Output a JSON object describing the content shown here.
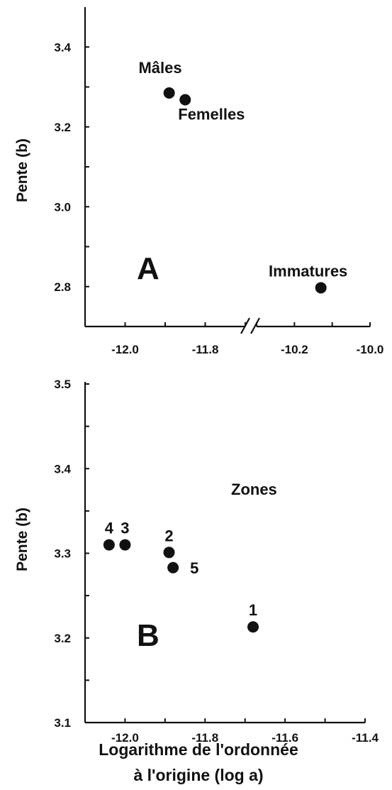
{
  "colors": {
    "ink": "#111111",
    "background": "#ffffff"
  },
  "x_axis_title_line1": "Logarithme de  l'ordonnée",
  "x_axis_title_line2": "à l'origine  (log a)",
  "chart_data": [
    {
      "type": "scatter",
      "panel": "A",
      "ylabel": "Pente  (b)",
      "ylim": [
        2.7,
        3.5
      ],
      "yticks": [
        2.8,
        3.0,
        3.2,
        3.4
      ],
      "broken_x_axis": true,
      "x_segments": [
        {
          "xlim": [
            -12.1,
            -11.7
          ],
          "ticks": [
            -12.0,
            -11.8
          ]
        },
        {
          "xlim": [
            -10.3,
            -10.0
          ],
          "ticks": [
            -10.2,
            -10.0
          ]
        }
      ],
      "points": [
        {
          "label": "Mâles",
          "x": -11.89,
          "y": 3.285
        },
        {
          "label": "Femelles",
          "x": -11.85,
          "y": 3.268
        },
        {
          "label": "Immatures",
          "x": -10.13,
          "y": 2.797
        }
      ]
    },
    {
      "type": "scatter",
      "panel": "B",
      "ylabel": "Pente   (b)",
      "ylim": [
        3.1,
        3.5
      ],
      "yticks": [
        3.1,
        3.2,
        3.3,
        3.4,
        3.5
      ],
      "xlim": [
        -12.1,
        -11.4
      ],
      "xticks": [
        -12.0,
        -11.8,
        -11.6,
        -11.4
      ],
      "annotation": "Zones",
      "points": [
        {
          "label": "4",
          "x": -12.04,
          "y": 3.31
        },
        {
          "label": "3",
          "x": -12.0,
          "y": 3.31
        },
        {
          "label": "2",
          "x": -11.89,
          "y": 3.301
        },
        {
          "label": "5",
          "x": -11.88,
          "y": 3.283
        },
        {
          "label": "1",
          "x": -11.68,
          "y": 3.213
        }
      ]
    }
  ]
}
